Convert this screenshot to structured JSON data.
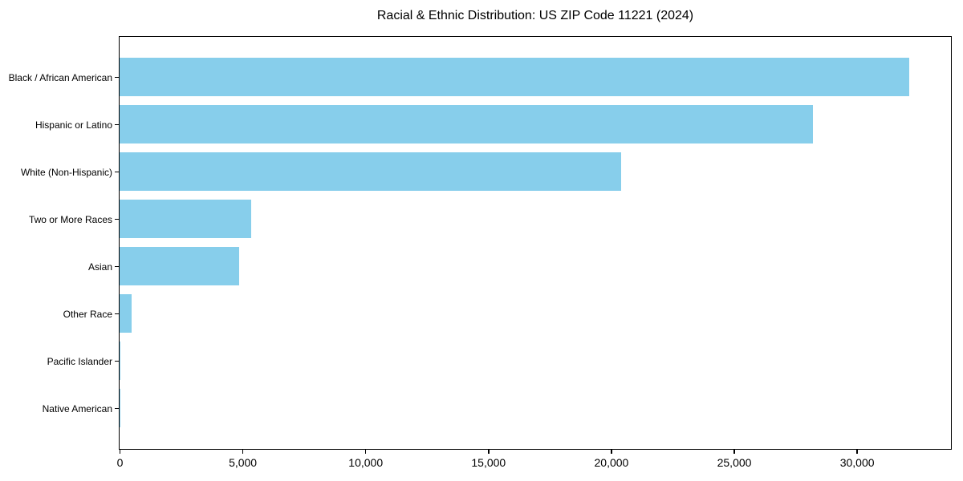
{
  "chart_data": {
    "type": "bar",
    "orientation": "horizontal",
    "title": "Racial & Ethnic Distribution: US ZIP Code 11221 (2024)",
    "categories": [
      "Black / African American",
      "Hispanic or Latino",
      "White (Non-Hispanic)",
      "Two or More Races",
      "Asian",
      "Other Race",
      "Pacific Islander",
      "Native American"
    ],
    "values": [
      32150,
      28200,
      20400,
      5350,
      4850,
      490,
      40,
      15
    ],
    "xlabel": "",
    "ylabel": "",
    "xlim": [
      0,
      33800
    ],
    "xticks": [
      0,
      5000,
      10000,
      15000,
      20000,
      25000,
      30000
    ],
    "bar_color": "#87CEEB",
    "axis_color": "#000000",
    "text_color": "#000000",
    "background": "#FFFFFF",
    "grid": false,
    "legend": "none"
  }
}
